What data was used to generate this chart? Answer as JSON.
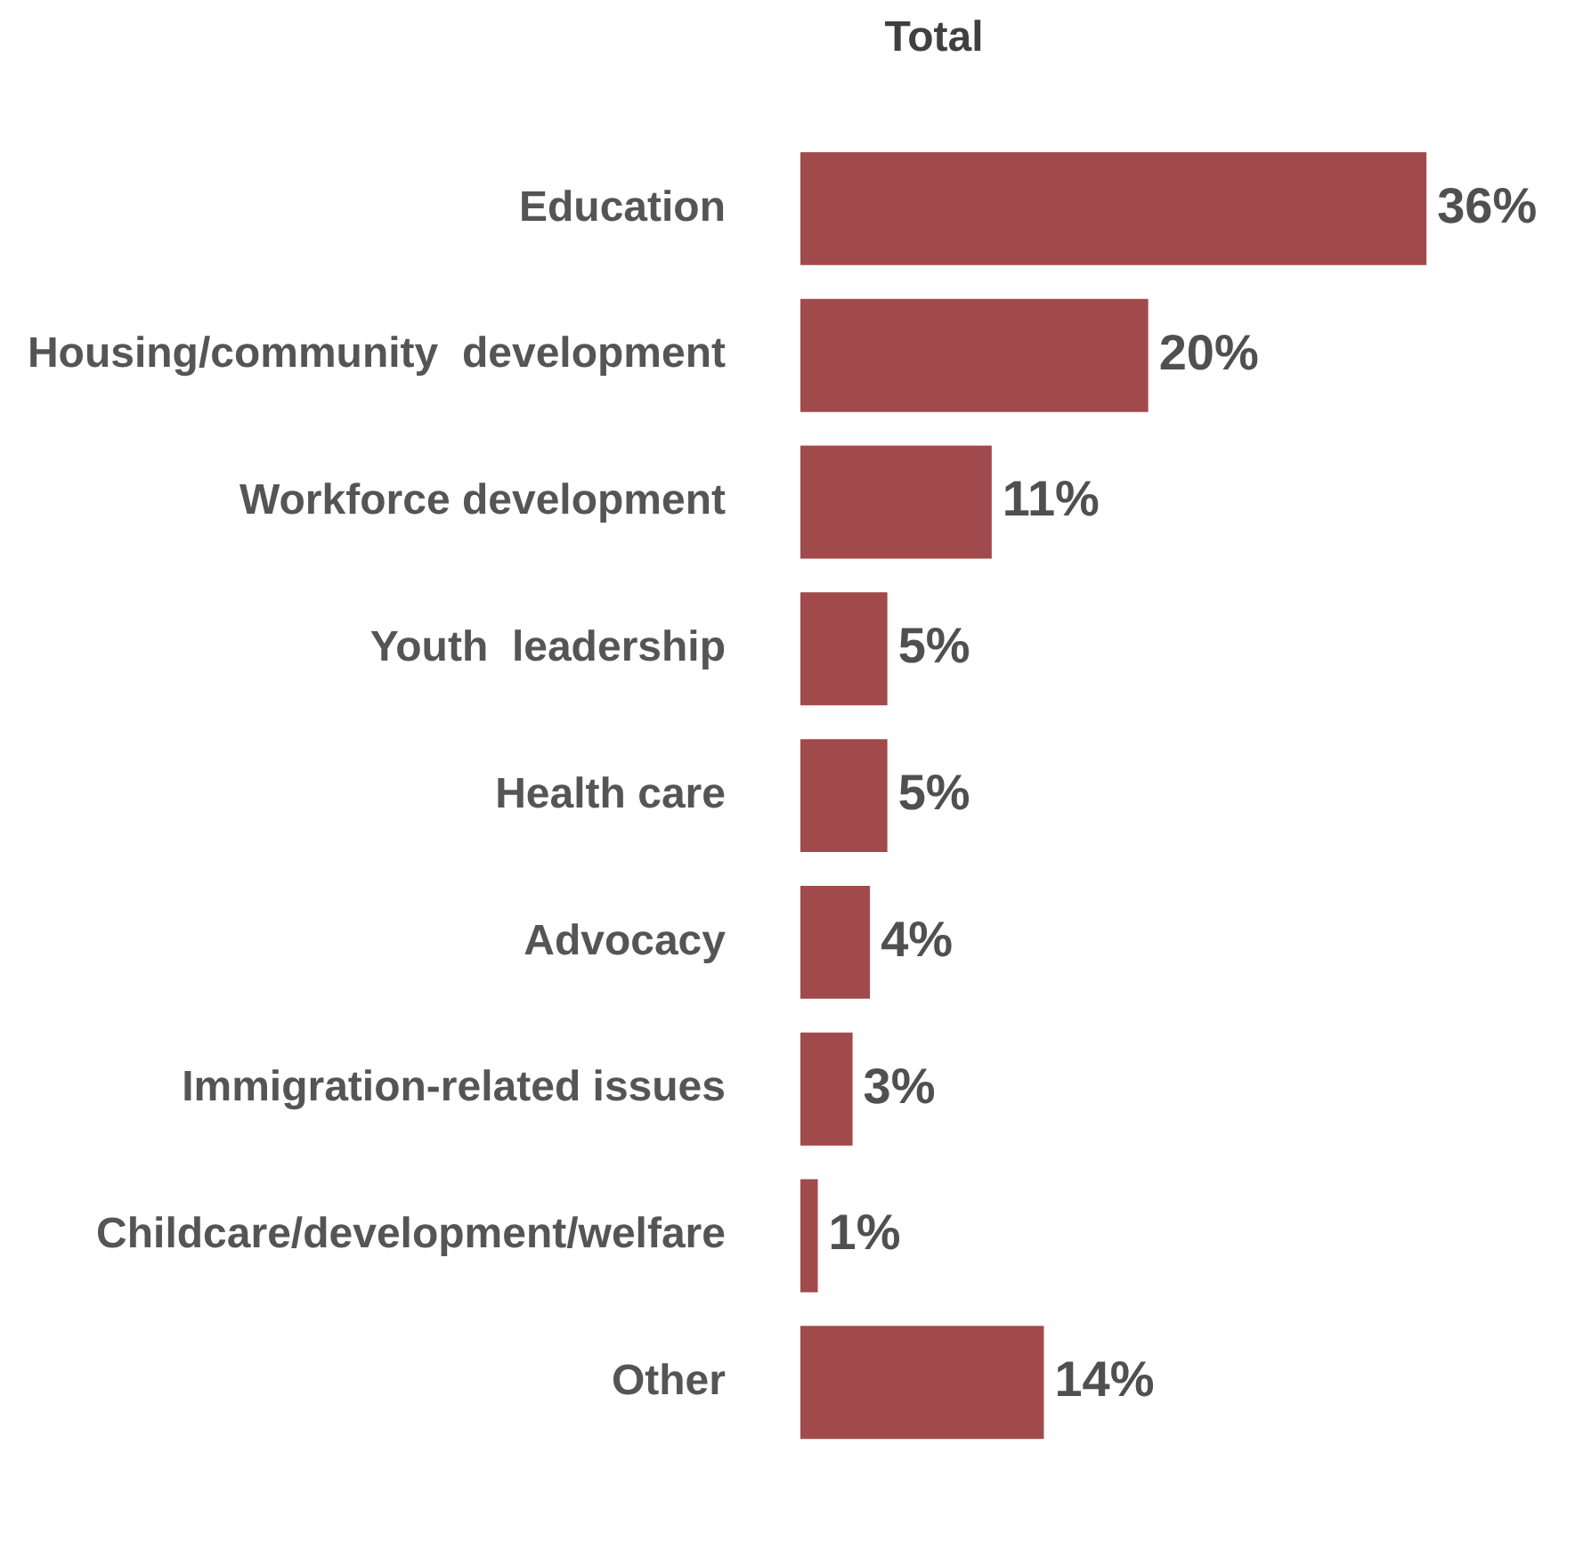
{
  "chart_data": {
    "type": "bar",
    "orientation": "horizontal",
    "title": "Total",
    "categories": [
      "Education",
      "Housing/community  development",
      "Workforce development",
      "Youth  leadership",
      "Health care",
      "Advocacy",
      "Immigration-related issues",
      "Childcare/development/welfare",
      "Other"
    ],
    "values": [
      36,
      20,
      11,
      5,
      5,
      4,
      3,
      1,
      14
    ],
    "value_labels": [
      "36%",
      "20%",
      "11%",
      "5%",
      "5%",
      "4%",
      "3%",
      "1%",
      "14%"
    ],
    "color": "#a04a4c",
    "legend": false
  }
}
